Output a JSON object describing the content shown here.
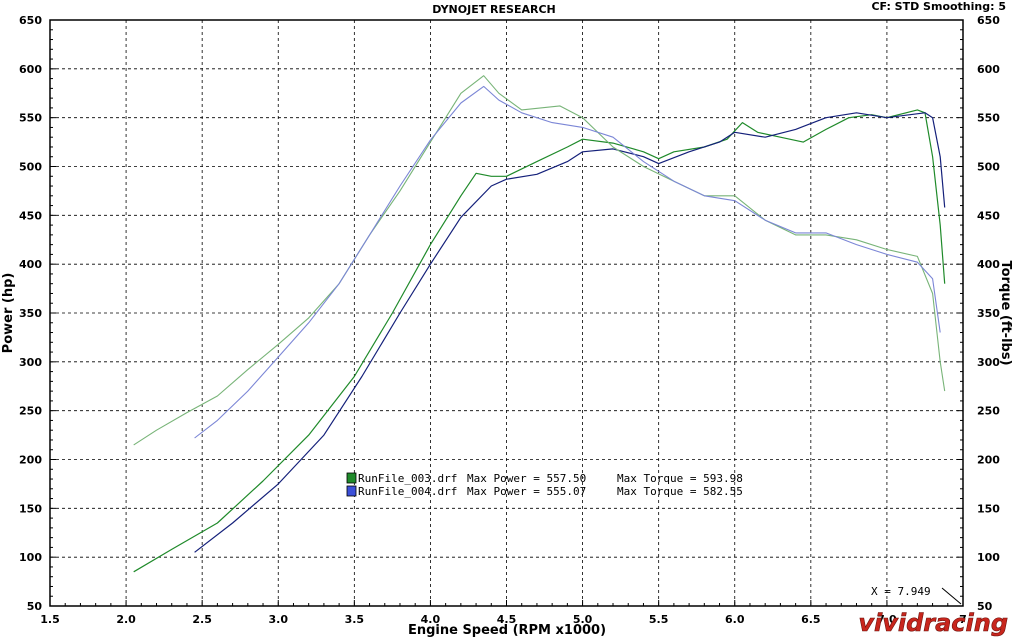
{
  "header": {
    "title": "DYNOJET RESEARCH",
    "settings": "CF: STD  Smoothing: 5"
  },
  "readout": {
    "text": "X = 7.949"
  },
  "watermark": {
    "text": "vividracing"
  },
  "legend": [
    {
      "file": "RunFile_003.drf",
      "power_label": "Max Power = 557.50",
      "torque_label": "Max Torque = 593.98",
      "swatch_color": "#1f8a2a"
    },
    {
      "file": "RunFile_004.drf",
      "power_label": "Max Power = 555.07",
      "torque_label": "Max Torque = 582.55",
      "swatch_color": "#3b4fd8"
    }
  ],
  "chart_data": {
    "type": "line",
    "title": "DYNOJET RESEARCH",
    "xlabel": "Engine Speed (RPM x1000)",
    "ylabel": "Power (hp)",
    "y2label": "Torque (ft-lbs)",
    "xlim": [
      1.5,
      7.5
    ],
    "ylim": [
      50,
      650
    ],
    "y2lim": [
      50,
      650
    ],
    "x_ticks": [
      "1.5",
      "2.0",
      "2.5",
      "3.0",
      "3.5",
      "4.0",
      "4.5",
      "5.0",
      "5.5",
      "6.0",
      "6.5",
      "7.0",
      "7"
    ],
    "y_ticks": [
      "650",
      "600",
      "550",
      "500",
      "450",
      "400",
      "350",
      "300",
      "250",
      "200",
      "150",
      "100",
      "50"
    ],
    "y2_ticks": [
      "650",
      "600",
      "550",
      "500",
      "450",
      "400",
      "350",
      "300",
      "250",
      "200",
      "150",
      "100",
      "50"
    ],
    "grid": true,
    "legend_position": "center-left",
    "series": [
      {
        "name": "RunFile_003.drf Power",
        "color": "#1f8a2a",
        "width": 1.2,
        "x": [
          2.05,
          2.3,
          2.6,
          2.9,
          3.2,
          3.5,
          3.75,
          4.0,
          4.2,
          4.3,
          4.4,
          4.5,
          4.7,
          4.9,
          5.0,
          5.2,
          5.4,
          5.5,
          5.6,
          5.8,
          5.95,
          6.05,
          6.15,
          6.3,
          6.45,
          6.6,
          6.75,
          6.9,
          7.0,
          7.2,
          7.25,
          7.3,
          7.35,
          7.38
        ],
        "y": [
          85,
          108,
          135,
          178,
          225,
          285,
          350,
          420,
          470,
          493,
          490,
          490,
          505,
          520,
          528,
          524,
          515,
          508,
          515,
          520,
          528,
          545,
          535,
          530,
          525,
          538,
          550,
          553,
          550,
          558,
          555,
          510,
          440,
          380
        ]
      },
      {
        "name": "RunFile_004.drf Power",
        "color": "#14207a",
        "width": 1.2,
        "x": [
          2.45,
          2.7,
          3.0,
          3.3,
          3.55,
          3.8,
          4.0,
          4.2,
          4.4,
          4.5,
          4.7,
          4.9,
          5.0,
          5.2,
          5.4,
          5.5,
          5.7,
          5.9,
          6.0,
          6.2,
          6.4,
          6.6,
          6.8,
          7.0,
          7.1,
          7.25,
          7.3,
          7.35,
          7.38
        ],
        "y": [
          105,
          135,
          175,
          225,
          285,
          350,
          400,
          448,
          480,
          487,
          492,
          505,
          515,
          518,
          510,
          503,
          515,
          525,
          535,
          530,
          538,
          550,
          555,
          550,
          552,
          555,
          550,
          510,
          458
        ]
      },
      {
        "name": "RunFile_003.drf Torque",
        "color": "#78b478",
        "width": 1.1,
        "x": [
          2.05,
          2.2,
          2.4,
          2.6,
          2.8,
          3.0,
          3.2,
          3.4,
          3.6,
          3.8,
          4.0,
          4.2,
          4.35,
          4.45,
          4.6,
          4.85,
          5.0,
          5.2,
          5.4,
          5.6,
          5.8,
          6.0,
          6.2,
          6.4,
          6.6,
          6.8,
          7.0,
          7.2,
          7.3,
          7.35,
          7.38
        ],
        "y": [
          215,
          230,
          248,
          265,
          292,
          318,
          345,
          380,
          430,
          475,
          525,
          575,
          593,
          575,
          558,
          562,
          550,
          520,
          500,
          485,
          470,
          470,
          445,
          430,
          430,
          425,
          415,
          408,
          370,
          300,
          270
        ]
      },
      {
        "name": "RunFile_004.drf Torque",
        "color": "#7b86d6",
        "width": 1.1,
        "x": [
          2.45,
          2.6,
          2.8,
          3.0,
          3.2,
          3.4,
          3.6,
          3.8,
          4.0,
          4.2,
          4.35,
          4.45,
          4.6,
          4.8,
          5.0,
          5.2,
          5.4,
          5.6,
          5.8,
          6.0,
          6.2,
          6.4,
          6.6,
          6.8,
          7.0,
          7.2,
          7.3,
          7.35
        ],
        "y": [
          222,
          240,
          270,
          305,
          340,
          380,
          430,
          480,
          527,
          565,
          582,
          568,
          555,
          545,
          540,
          530,
          505,
          485,
          470,
          465,
          445,
          432,
          432,
          420,
          410,
          402,
          385,
          330
        ]
      }
    ]
  }
}
